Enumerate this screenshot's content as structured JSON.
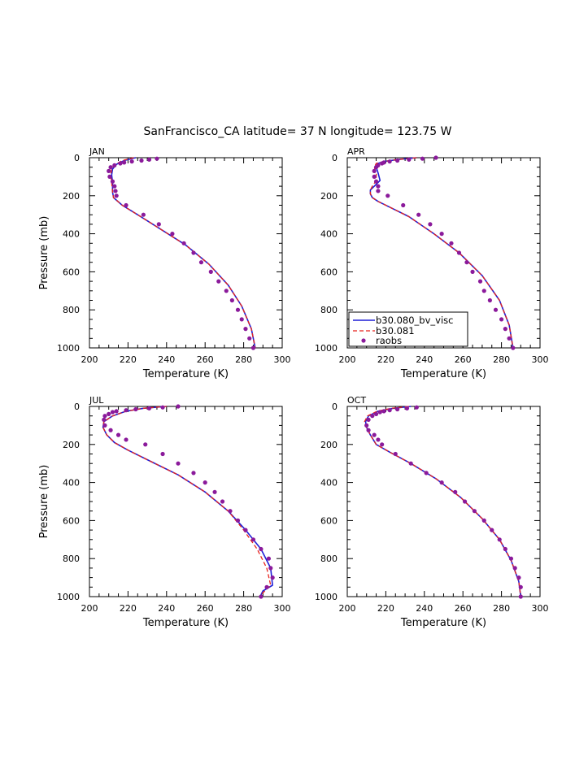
{
  "figure": {
    "title": "SanFrancisco_CA  latitude= 37 N longitude= 123.75 W"
  },
  "legend": {
    "entries": [
      "b30.080_bv_visc",
      "b30.081",
      "raobs"
    ]
  },
  "colors": {
    "model_visc": "#1f1fd6",
    "model_081": "#e8221c",
    "raobs": "#8b1a9b",
    "axis": "#000000"
  },
  "chart_data": [
    {
      "type": "line",
      "panel": "JAN",
      "title": "JAN",
      "xlabel": "Temperature (K)",
      "ylabel": "Pressure (mb)",
      "xlim": [
        200,
        300
      ],
      "ylim": [
        1000,
        0
      ],
      "xticks": [
        200,
        220,
        240,
        260,
        280,
        300
      ],
      "yticks": [
        0,
        200,
        400,
        600,
        800,
        1000
      ],
      "series": [
        {
          "name": "b30.080_bv_visc",
          "style": "solid",
          "x": [
            224,
            218,
            214,
            212,
            211.5,
            212,
            212,
            212.5,
            217,
            225,
            236,
            250,
            262,
            272,
            279,
            284,
            286
          ],
          "y": [
            0,
            15,
            35,
            60,
            90,
            130,
            180,
            210,
            250,
            300,
            370,
            460,
            560,
            670,
            780,
            900,
            1000
          ]
        },
        {
          "name": "b30.081",
          "style": "dashed",
          "x": [
            223,
            217,
            213.5,
            211.5,
            211,
            211.5,
            212,
            212.5,
            217,
            225,
            236,
            250,
            262,
            272,
            279,
            284,
            286
          ],
          "y": [
            0,
            15,
            35,
            60,
            90,
            130,
            180,
            210,
            250,
            300,
            370,
            460,
            560,
            670,
            780,
            900,
            1000
          ]
        },
        {
          "name": "raobs",
          "style": "markers",
          "x": [
            235,
            231,
            227,
            222,
            218,
            216,
            213,
            211,
            210,
            210.5,
            212,
            213,
            213.5,
            214,
            219,
            228,
            236,
            243,
            249,
            254,
            258,
            263,
            267,
            271,
            274,
            277,
            279,
            281,
            283,
            285
          ],
          "y": [
            5,
            10,
            15,
            20,
            25,
            30,
            40,
            50,
            70,
            100,
            125,
            150,
            175,
            200,
            250,
            300,
            350,
            400,
            450,
            500,
            550,
            600,
            650,
            700,
            750,
            800,
            850,
            900,
            950,
            1000
          ]
        }
      ]
    },
    {
      "type": "line",
      "panel": "APR",
      "title": "APR",
      "xlabel": "Temperature (K)",
      "ylabel": "",
      "xlim": [
        200,
        300
      ],
      "ylim": [
        1000,
        0
      ],
      "xticks": [
        200,
        220,
        240,
        260,
        280,
        300
      ],
      "yticks": [
        0,
        200,
        400,
        600,
        800,
        1000
      ],
      "series": [
        {
          "name": "b30.080_bv_visc",
          "style": "solid",
          "x": [
            236,
            226,
            219,
            216,
            215,
            216,
            217,
            214,
            212,
            212,
            213,
            216,
            222,
            232,
            245,
            258,
            270,
            279,
            284,
            286
          ],
          "y": [
            0,
            10,
            20,
            30,
            50,
            80,
            120,
            150,
            170,
            190,
            210,
            230,
            260,
            310,
            400,
            500,
            620,
            750,
            880,
            1000
          ]
        },
        {
          "name": "b30.081",
          "style": "dashed",
          "x": [
            236,
            226,
            219,
            215,
            214,
            215,
            215,
            213,
            212,
            212,
            213,
            216,
            222,
            232,
            245,
            258,
            270,
            279,
            284,
            286
          ],
          "y": [
            0,
            10,
            20,
            30,
            50,
            80,
            120,
            150,
            170,
            190,
            210,
            230,
            260,
            310,
            400,
            500,
            620,
            750,
            880,
            1000
          ]
        },
        {
          "name": "raobs",
          "style": "markers",
          "x": [
            246,
            239,
            232,
            226,
            222,
            219,
            218,
            216,
            215,
            214,
            214,
            215,
            216,
            216,
            221,
            229,
            237,
            243,
            249,
            254,
            258,
            262,
            265,
            269,
            271,
            274,
            277,
            280,
            282,
            284,
            286
          ],
          "y": [
            0,
            5,
            10,
            15,
            20,
            25,
            30,
            40,
            50,
            70,
            100,
            125,
            150,
            175,
            200,
            250,
            300,
            350,
            400,
            450,
            500,
            550,
            600,
            650,
            700,
            750,
            800,
            850,
            900,
            950,
            1000
          ]
        }
      ]
    },
    {
      "type": "line",
      "panel": "JUL",
      "title": "JUL",
      "xlabel": "Temperature (K)",
      "ylabel": "Pressure (mb)",
      "xlim": [
        200,
        300
      ],
      "ylim": [
        1000,
        0
      ],
      "xticks": [
        200,
        220,
        240,
        260,
        280,
        300
      ],
      "yticks": [
        0,
        200,
        400,
        600,
        800,
        1000
      ],
      "series": [
        {
          "name": "b30.080_bv_visc",
          "style": "solid",
          "x": [
            240,
            228,
            219,
            212,
            207.5,
            207,
            209,
            213,
            220,
            232,
            246,
            260,
            272,
            281,
            289,
            294,
            295,
            290,
            289
          ],
          "y": [
            0,
            10,
            25,
            50,
            80,
            110,
            150,
            190,
            230,
            290,
            360,
            450,
            550,
            650,
            750,
            850,
            940,
            970,
            990
          ]
        },
        {
          "name": "b30.081",
          "style": "dashed",
          "x": [
            240,
            228,
            219,
            212,
            207.5,
            207,
            209,
            213,
            220,
            232,
            246,
            260,
            272,
            280,
            287,
            292,
            294,
            291,
            289
          ],
          "y": [
            0,
            10,
            25,
            50,
            80,
            110,
            150,
            190,
            230,
            290,
            360,
            450,
            550,
            650,
            750,
            850,
            940,
            970,
            990
          ]
        },
        {
          "name": "raobs",
          "style": "markers",
          "x": [
            246,
            238,
            231,
            224,
            219,
            214,
            212,
            210,
            208,
            207.5,
            208,
            211,
            215,
            219,
            229,
            238,
            246,
            254,
            260,
            265,
            269,
            273,
            277,
            281,
            285,
            289,
            293,
            294,
            295,
            292,
            289
          ],
          "y": [
            0,
            5,
            10,
            15,
            20,
            25,
            30,
            40,
            50,
            70,
            100,
            125,
            150,
            175,
            200,
            250,
            300,
            350,
            400,
            450,
            500,
            550,
            600,
            650,
            700,
            750,
            800,
            850,
            900,
            950,
            1000
          ]
        }
      ]
    },
    {
      "type": "line",
      "panel": "OCT",
      "title": "OCT",
      "xlabel": "Temperature (K)",
      "ylabel": "",
      "xlim": [
        200,
        300
      ],
      "ylim": [
        1000,
        0
      ],
      "xticks": [
        200,
        220,
        240,
        260,
        280,
        300
      ],
      "yticks": [
        0,
        200,
        400,
        600,
        800,
        1000
      ],
      "series": [
        {
          "name": "b30.080_bv_visc",
          "style": "solid",
          "x": [
            233,
            224,
            216,
            211,
            209.5,
            210,
            212,
            215,
            222,
            233,
            246,
            259,
            270,
            279,
            285,
            289,
            290
          ],
          "y": [
            0,
            10,
            25,
            50,
            80,
            110,
            150,
            200,
            240,
            300,
            380,
            480,
            590,
            700,
            810,
            920,
            1000
          ]
        },
        {
          "name": "b30.081",
          "style": "dashed",
          "x": [
            232,
            223,
            215.5,
            210.5,
            209,
            210,
            212,
            215,
            222,
            233,
            246,
            259,
            270,
            279,
            285,
            289,
            290
          ],
          "y": [
            0,
            10,
            25,
            50,
            80,
            110,
            150,
            200,
            240,
            300,
            380,
            480,
            590,
            700,
            810,
            920,
            1000
          ]
        },
        {
          "name": "raobs",
          "style": "markers",
          "x": [
            236,
            231,
            226,
            222,
            219,
            217,
            215,
            213,
            211,
            210,
            211,
            214,
            216,
            218,
            225,
            233,
            241,
            249,
            256,
            261,
            266,
            271,
            275,
            279,
            282,
            285,
            287,
            289,
            290,
            290
          ],
          "y": [
            5,
            10,
            15,
            20,
            25,
            30,
            40,
            50,
            70,
            100,
            125,
            150,
            175,
            200,
            250,
            300,
            350,
            400,
            450,
            500,
            550,
            600,
            650,
            700,
            750,
            800,
            850,
            900,
            950,
            1000
          ]
        }
      ]
    }
  ]
}
